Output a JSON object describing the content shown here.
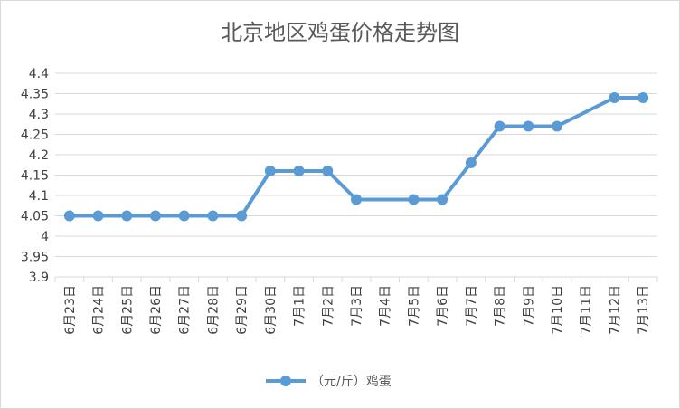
{
  "chart_data": {
    "type": "line",
    "title": "北京地区鸡蛋价格走势图",
    "xlabel": "",
    "ylabel": "",
    "ylim": [
      3.9,
      4.4
    ],
    "yticks": [
      "4.4",
      "4.35",
      "4.3",
      "4.25",
      "4.2",
      "4.15",
      "4.1",
      "4.05",
      "4",
      "3.95",
      "3.9"
    ],
    "categories": [
      "6月23日",
      "6月24日",
      "6月25日",
      "6月26日",
      "6月27日",
      "6月28日",
      "6月29日",
      "6月30日",
      "7月1日",
      "7月2日",
      "7月3日",
      "7月4日",
      "7月5日",
      "7月6日",
      "7月7日",
      "7月8日",
      "7月9日",
      "7月10日",
      "7月11日",
      "7月12日",
      "7月13日"
    ],
    "series": [
      {
        "name": "（元/斤）鸡蛋",
        "values": [
          4.05,
          4.05,
          4.05,
          4.05,
          4.05,
          4.05,
          4.05,
          4.16,
          4.16,
          4.16,
          4.09,
          null,
          4.09,
          4.09,
          4.18,
          4.27,
          4.27,
          4.27,
          null,
          4.34,
          4.34
        ],
        "color": "#5b9bd5"
      }
    ],
    "grid": true,
    "legend_position": "bottom",
    "gridline_color": "#d9d9d9"
  }
}
